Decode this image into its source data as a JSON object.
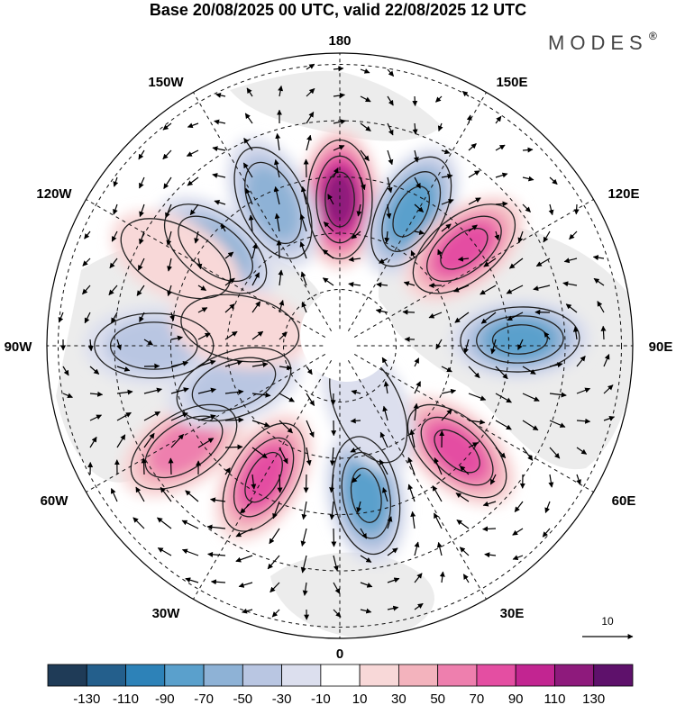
{
  "title": "Base 20/08/2025 00 UTC, valid 22/08/2025 12 UTC",
  "brand": "MODES",
  "brand_mark": "®",
  "longitude_labels": {
    "top": "180",
    "bottom": "0",
    "left": "90W",
    "right": "90E",
    "upper_left_1": "150W",
    "upper_left_2": "120W",
    "upper_right_1": "150E",
    "upper_right_2": "120E",
    "lower_left_1": "60W",
    "lower_left_2": "30W",
    "lower_right_1": "60E",
    "lower_right_2": "30E"
  },
  "reference_vector": {
    "label": "10"
  },
  "colorbar": {
    "tick_labels": [
      "-130",
      "-110",
      "-90",
      "-70",
      "-50",
      "-30",
      "-10",
      "10",
      "30",
      "50",
      "70",
      "90",
      "110",
      "130"
    ],
    "colors": [
      "#1f3b57",
      "#245f8c",
      "#2d82b8",
      "#5aa0cc",
      "#8eb2d6",
      "#b9c6e2",
      "#dcdfee",
      "#ffffff",
      "#f8d8d8",
      "#f3b3bd",
      "#ee7fae",
      "#e44ea2",
      "#c22591",
      "#8e1a7c",
      "#5e116b"
    ]
  },
  "anomaly_centers": [
    {
      "lon": 180,
      "colat": 26,
      "value": 110
    },
    {
      "lon": 152,
      "colat": 27,
      "value": -85
    },
    {
      "lon": 128,
      "colat": 28,
      "value": 85
    },
    {
      "lon": 92,
      "colat": 32,
      "value": -70
    },
    {
      "lon": 48,
      "colat": 28,
      "value": 75
    },
    {
      "lon": 10,
      "colat": 27,
      "value": -75
    },
    {
      "lon": -30,
      "colat": 27,
      "value": 85
    },
    {
      "lon": -57,
      "colat": 33,
      "value": 55
    },
    {
      "lon": -90,
      "colat": 33,
      "value": -45
    },
    {
      "lon": -128,
      "colat": 28,
      "value": -55
    },
    {
      "lon": -118,
      "colat": 33,
      "value": 25
    },
    {
      "lon": -155,
      "colat": 28,
      "value": -50
    },
    {
      "lon": -70,
      "colat": 20,
      "value": -30
    },
    {
      "lon": -100,
      "colat": 18,
      "value": 20
    },
    {
      "lon": 25,
      "colat": 12,
      "value": -20
    }
  ]
}
